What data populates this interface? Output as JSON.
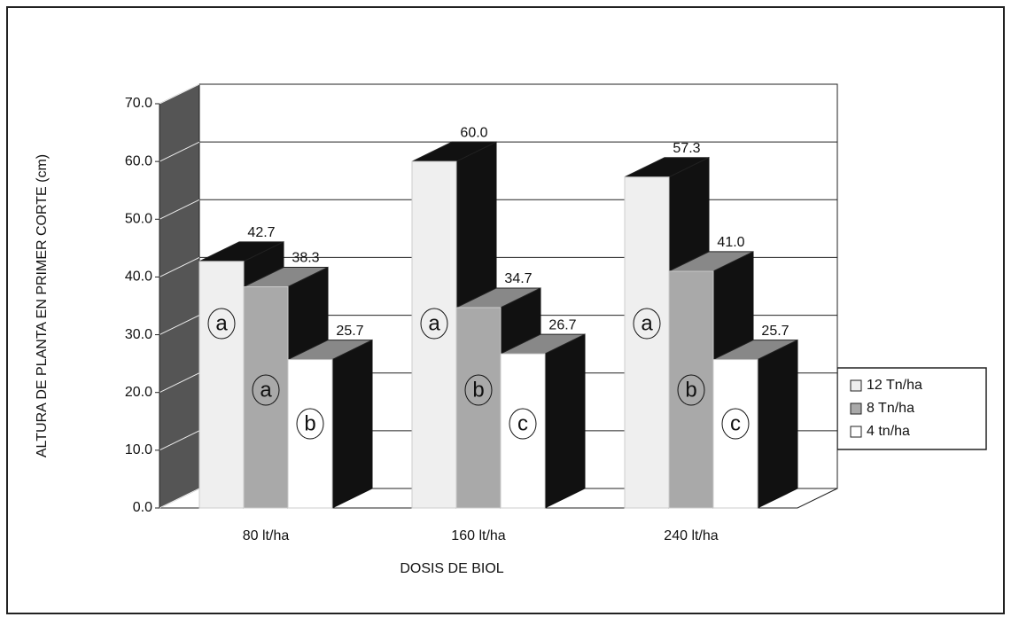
{
  "chart_data": {
    "type": "bar3d",
    "ylabel": "ALTURA DE PLANTA EN PRIMER CORTE (cm)",
    "xlabel": "DOSIS DE BIOL",
    "categories": [
      "80 lt/ha",
      "160 lt/ha",
      "240 lt/ha"
    ],
    "series": [
      {
        "name": "12 Tn/ha",
        "color": "#efefef",
        "values": [
          42.7,
          60.0,
          57.3
        ],
        "value_labels": [
          "42.7",
          "60.0",
          "57.3"
        ],
        "letters": [
          "a",
          "a",
          "a"
        ]
      },
      {
        "name": "8 Tn/ha",
        "color": "#a9a9a9",
        "values": [
          38.3,
          34.7,
          41.0
        ],
        "value_labels": [
          "38.3",
          "34.7",
          "41.0"
        ],
        "letters": [
          "a",
          "b",
          "b"
        ]
      },
      {
        "name": "4 tn/ha",
        "color": "#ffffff",
        "values": [
          25.7,
          26.7,
          25.7
        ],
        "value_labels": [
          "25.7",
          "26.7",
          "25.7"
        ],
        "letters": [
          "b",
          "c",
          "c"
        ]
      }
    ],
    "ylim": [
      0,
      70
    ],
    "yticks": [
      {
        "value": 0,
        "label": "0.0"
      },
      {
        "value": 10,
        "label": "10.0"
      },
      {
        "value": 20,
        "label": "20.0"
      },
      {
        "value": 30,
        "label": "30.0"
      },
      {
        "value": 40,
        "label": "40.0"
      },
      {
        "value": 50,
        "label": "50.0"
      },
      {
        "value": 60,
        "label": "60.0"
      },
      {
        "value": 70,
        "label": "70.0"
      }
    ],
    "grid": true,
    "legend": "right"
  }
}
